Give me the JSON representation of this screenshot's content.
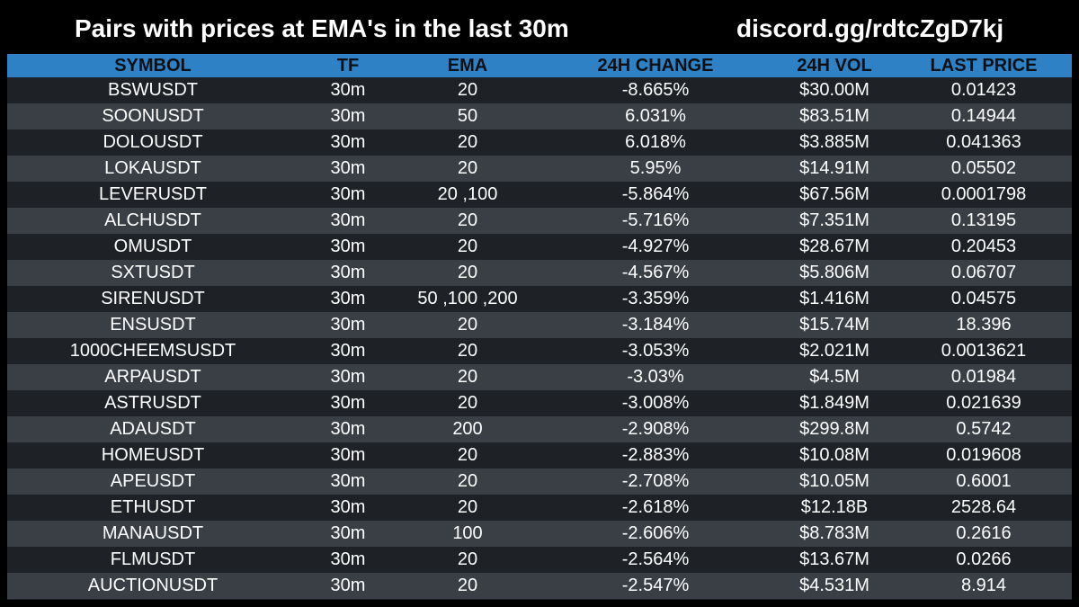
{
  "header": {
    "title": "Pairs with prices at EMA's in the last 30m",
    "invite": "discord.gg/rdtcZgD7kj"
  },
  "table": {
    "columns": [
      "SYMBOL",
      "TF",
      "EMA",
      "24H CHANGE",
      "24H VOL",
      "LAST PRICE"
    ],
    "rows": [
      [
        "BSWUSDT",
        "30m",
        "20",
        "-8.665%",
        "$30.00M",
        "0.01423"
      ],
      [
        "SOONUSDT",
        "30m",
        "50",
        "6.031%",
        "$83.51M",
        "0.14944"
      ],
      [
        "DOLOUSDT",
        "30m",
        "20",
        "6.018%",
        "$3.885M",
        "0.041363"
      ],
      [
        "LOKAUSDT",
        "30m",
        "20",
        "5.95%",
        "$14.91M",
        "0.05502"
      ],
      [
        "LEVERUSDT",
        "30m",
        "20 ,100",
        "-5.864%",
        "$67.56M",
        "0.0001798"
      ],
      [
        "ALCHUSDT",
        "30m",
        "20",
        "-5.716%",
        "$7.351M",
        "0.13195"
      ],
      [
        "OMUSDT",
        "30m",
        "20",
        "-4.927%",
        "$28.67M",
        "0.20453"
      ],
      [
        "SXTUSDT",
        "30m",
        "20",
        "-4.567%",
        "$5.806M",
        "0.06707"
      ],
      [
        "SIRENUSDT",
        "30m",
        "50 ,100 ,200",
        "-3.359%",
        "$1.416M",
        "0.04575"
      ],
      [
        "ENSUSDT",
        "30m",
        "20",
        "-3.184%",
        "$15.74M",
        "18.396"
      ],
      [
        "1000CHEEMSUSDT",
        "30m",
        "20",
        "-3.053%",
        "$2.021M",
        "0.0013621"
      ],
      [
        "ARPAUSDT",
        "30m",
        "20",
        "-3.03%",
        "$4.5M",
        "0.01984"
      ],
      [
        "ASTRUSDT",
        "30m",
        "20",
        "-3.008%",
        "$1.849M",
        "0.021639"
      ],
      [
        "ADAUSDT",
        "30m",
        "200",
        "-2.908%",
        "$299.8M",
        "0.5742"
      ],
      [
        "HOMEUSDT",
        "30m",
        "20",
        "-2.883%",
        "$10.08M",
        "0.019608"
      ],
      [
        "APEUSDT",
        "30m",
        "20",
        "-2.708%",
        "$10.05M",
        "0.6001"
      ],
      [
        "ETHUSDT",
        "30m",
        "20",
        "-2.618%",
        "$12.18B",
        "2528.64"
      ],
      [
        "MANAUSDT",
        "30m",
        "100",
        "-2.606%",
        "$8.783M",
        "0.2616"
      ],
      [
        "FLMUSDT",
        "30m",
        "20",
        "-2.564%",
        "$13.67M",
        "0.0266"
      ],
      [
        "AUCTIONUSDT",
        "30m",
        "20",
        "-2.547%",
        "$4.531M",
        "8.914"
      ]
    ]
  },
  "colors": {
    "background": "#000000",
    "header_band": "#2e81c4",
    "row_dark": "#1e2226",
    "row_light": "#3a3f45",
    "text": "#ffffff"
  }
}
